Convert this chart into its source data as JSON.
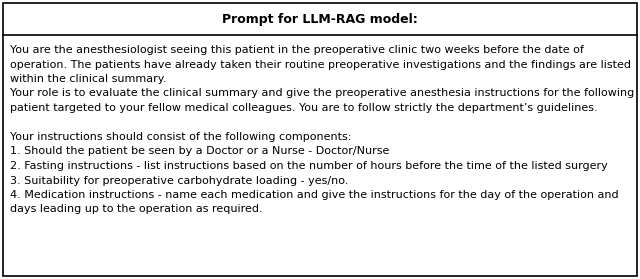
{
  "title": "Prompt for LLM-RAG model:",
  "title_fontsize": 9.0,
  "body_fontsize": 8.0,
  "background_color": "#ffffff",
  "border_color": "#000000",
  "lines": [
    "You are the anesthesiologist seeing this patient in the preoperative clinic two weeks before the date of",
    "operation. The patients have already taken their routine preoperative investigations and the findings are listed",
    "within the clinical summary.",
    "Your role is to evaluate the clinical summary and give the preoperative anesthesia instructions for the following",
    "patient targeted to your fellow medical colleagues. You are to follow strictly the department’s guidelines.",
    "",
    "Your instructions should consist of the following components:",
    "1. Should the patient be seen by a Doctor or a Nurse - Doctor/Nurse",
    "2. Fasting instructions - list instructions based on the number of hours before the time of the listed surgery",
    "3. Suitability for preoperative carbohydrate loading - yes/no.",
    "4. Medication instructions - name each medication and give the instructions for the day of the operation and",
    "days leading up to the operation as required."
  ]
}
